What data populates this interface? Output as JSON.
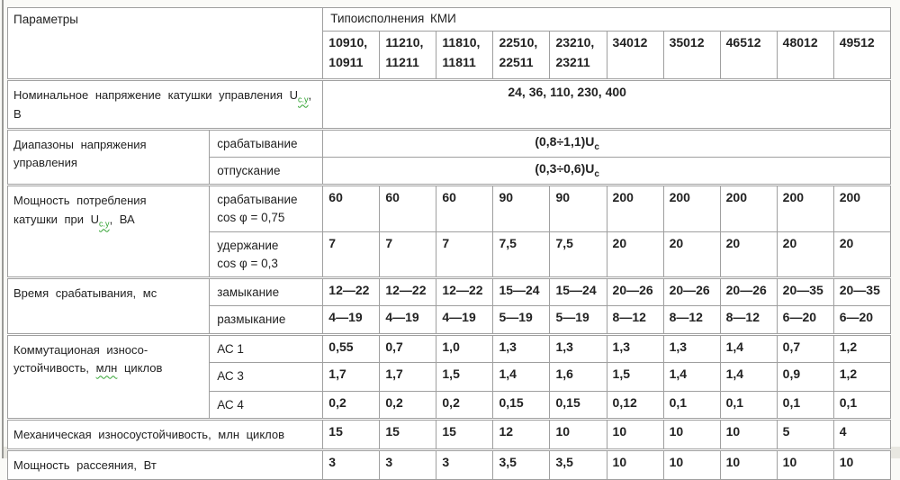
{
  "colors": {
    "border": "#9f9f9f",
    "spellcheck_green": "#2ea12e",
    "text": "#222222",
    "page_bg": "#fafaf7"
  },
  "table": {
    "corner_header": "Параметры",
    "group_header": "Типоисполнения КМИ",
    "columns": [
      "10910, 10911",
      "11210, 11211",
      "11810, 11811",
      "22510, 22511",
      "23210, 23211",
      "34012",
      "35012",
      "46512",
      "48012",
      "49512"
    ],
    "rows": {
      "nominal_voltage": {
        "label_pre": "Номинальное напряжение катушки управления U",
        "label_sub": "с.у",
        "label_post": ", В",
        "value": "24, 36, 110, 230, 400"
      },
      "voltage_range": {
        "label": "Диапазоны напряжения управления",
        "sub": [
          {
            "label": "срабатывание",
            "value_pre": "(0,8÷1,1)U",
            "value_sub": "с"
          },
          {
            "label": "отпускание",
            "value_pre": "(0,3÷0,6)U",
            "value_sub": "с"
          }
        ]
      },
      "coil_power": {
        "label_pre": "Мощность потребления катушки при U",
        "label_sub": "с.у",
        "label_post": ", ВА",
        "sub": [
          {
            "label": "срабатывание",
            "label2": "cos φ = 0,75",
            "values": [
              "60",
              "60",
              "60",
              "90",
              "90",
              "200",
              "200",
              "200",
              "200",
              "200"
            ]
          },
          {
            "label": "удержание",
            "label2": "cos φ = 0,3",
            "values": [
              "7",
              "7",
              "7",
              "7,5",
              "7,5",
              "20",
              "20",
              "20",
              "20",
              "20"
            ]
          }
        ]
      },
      "response_time": {
        "label": "Время срабатывания, мс",
        "sub": [
          {
            "label": "замыкание",
            "values": [
              "12—22",
              "12—22",
              "12—22",
              "15—24",
              "15—24",
              "20—26",
              "20—26",
              "20—26",
              "20—35",
              "20—35"
            ]
          },
          {
            "label": "размыкание",
            "values": [
              "4—19",
              "4—19",
              "4—19",
              "5—19",
              "5—19",
              "8—12",
              "8—12",
              "8—12",
              "6—20",
              "6—20"
            ]
          }
        ]
      },
      "switching_endurance": {
        "label_pre": "Коммутационая износо-устойчивость, ",
        "label_green": "млн",
        "label_post": " циклов",
        "sub": [
          {
            "label": "АС 1",
            "values": [
              "0,55",
              "0,7",
              "1,0",
              "1,3",
              "1,3",
              "1,3",
              "1,3",
              "1,4",
              "0,7",
              "1,2"
            ]
          },
          {
            "label": "АС 3",
            "values": [
              "1,7",
              "1,7",
              "1,5",
              "1,4",
              "1,6",
              "1,5",
              "1,4",
              "1,4",
              "0,9",
              "1,2"
            ]
          },
          {
            "label": "АС 4",
            "values": [
              "0,2",
              "0,2",
              "0,2",
              "0,15",
              "0,15",
              "0,12",
              "0,1",
              "0,1",
              "0,1",
              "0,1"
            ]
          }
        ]
      },
      "mechanical_endurance": {
        "label": "Механическая износоустойчивость, млн циклов",
        "values": [
          "15",
          "15",
          "15",
          "12",
          "10",
          "10",
          "10",
          "10",
          "5",
          "4"
        ]
      },
      "dissipation_power": {
        "label": "Мощность рассеяния, Вт",
        "values": [
          "3",
          "3",
          "3",
          "3,5",
          "3,5",
          "10",
          "10",
          "10",
          "10",
          "10"
        ]
      }
    }
  }
}
